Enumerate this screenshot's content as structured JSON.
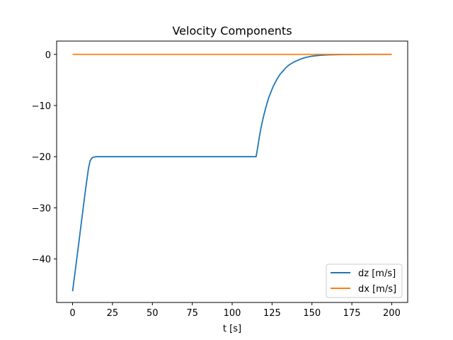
{
  "chart_data": {
    "type": "line",
    "title": "Velocity Components",
    "xlabel": "t [s]",
    "ylabel": "",
    "xlim": [
      -10,
      210
    ],
    "ylim": [
      -48.5,
      2.6
    ],
    "x_ticks": [
      0,
      25,
      50,
      75,
      100,
      125,
      150,
      175,
      200
    ],
    "x_tick_labels": [
      "0",
      "25",
      "50",
      "75",
      "100",
      "125",
      "150",
      "175",
      "200"
    ],
    "y_ticks": [
      0,
      -10,
      -20,
      -30,
      -40
    ],
    "y_tick_labels": [
      "0",
      "−10",
      "−20",
      "−30",
      "−40"
    ],
    "grid": false,
    "legend_position": "bottom-right",
    "series": [
      {
        "name": "dz [m/s]",
        "color": "#1f77b4",
        "x": [
          0,
          2,
          4,
          6,
          8,
          10,
          11,
          12,
          13,
          15,
          20,
          40,
          60,
          80,
          100,
          110,
          115,
          116,
          117,
          118,
          119,
          120,
          121,
          122,
          123,
          124,
          125,
          126,
          128,
          130,
          132,
          134,
          136,
          138,
          140,
          143,
          146,
          150,
          155,
          160,
          170,
          180,
          190,
          200
        ],
        "y": [
          -46.3,
          -41.5,
          -36.6,
          -31.6,
          -26.7,
          -22.2,
          -20.8,
          -20.3,
          -20.1,
          -20.0,
          -20.0,
          -20.0,
          -20.0,
          -20.0,
          -20.0,
          -20.0,
          -20.0,
          -18.2,
          -16.2,
          -14.5,
          -13.0,
          -11.7,
          -10.5,
          -9.4,
          -8.4,
          -7.6,
          -6.8,
          -6.1,
          -4.9,
          -3.9,
          -3.2,
          -2.5,
          -2.0,
          -1.6,
          -1.3,
          -0.9,
          -0.6,
          -0.35,
          -0.18,
          -0.09,
          -0.03,
          -0.01,
          0.0,
          0.0
        ]
      },
      {
        "name": "dx [m/s]",
        "color": "#ff7f0e",
        "x": [
          0,
          200
        ],
        "y": [
          0,
          0
        ]
      }
    ]
  }
}
